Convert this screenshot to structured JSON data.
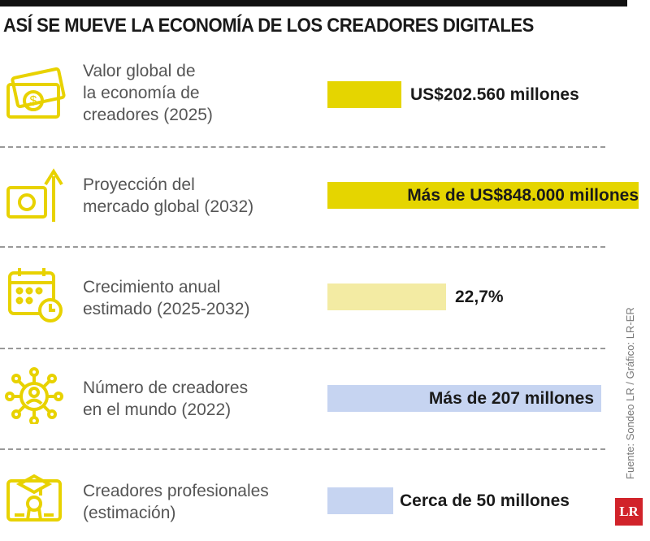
{
  "title": "ASÍ SE MUEVE LA ECONOMÍA DE LOS CREADORES DIGITALES",
  "rows": [
    {
      "label": [
        "Valor global de",
        "la economía de",
        "creadores (2025)"
      ],
      "value": "US$202.560 millones"
    },
    {
      "label": [
        "Proyección del",
        "mercado global (2032)"
      ],
      "value": "Más de US$848.000 millones"
    },
    {
      "label": [
        "Crecimiento anual",
        "estimado (2025-2032)"
      ],
      "value": "22,7%"
    },
    {
      "label": [
        "Número de creadores",
        "en el mundo (2022)"
      ],
      "value": "Más de 207 millones"
    },
    {
      "label": [
        "Creadores profesionales",
        "(estimación)"
      ],
      "value": "Cerca de 50 millones"
    }
  ],
  "source": "Fuente: Sondeo LR / Gráfico: LR-ER",
  "logo": "LR"
}
